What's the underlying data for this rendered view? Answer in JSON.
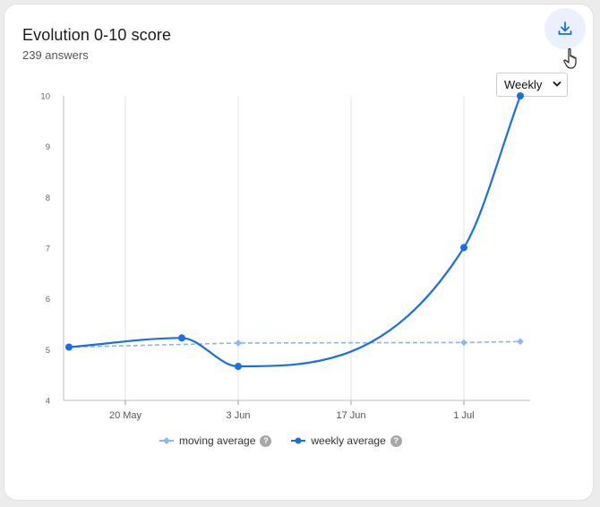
{
  "header": {
    "title": "Evolution 0-10 score",
    "subtitle": "239 answers"
  },
  "toolbar": {
    "download_icon": "download-icon",
    "period_select_value": "Weekly"
  },
  "legend": {
    "moving_label": "moving average",
    "weekly_label": "weekly average",
    "help_glyph": "?"
  },
  "colors": {
    "weekly": "#1a6ee8",
    "moving": "#8ab8f2",
    "accent_bg": "#eaf1fc"
  },
  "chart_data": {
    "type": "line",
    "title": "Evolution 0-10 score",
    "xlabel": "",
    "ylabel": "",
    "ylim": [
      4,
      10
    ],
    "yticks": [
      4,
      5,
      6,
      7,
      8,
      9,
      10
    ],
    "xtick_labels": [
      "20 May",
      "3 Jun",
      "17 Jun",
      "1 Jul"
    ],
    "x": [
      "2024-05-13",
      "2024-05-27",
      "2024-06-03",
      "2024-06-10",
      "2024-06-17",
      "2024-06-24",
      "2024-07-01",
      "2024-07-08"
    ],
    "series": [
      {
        "name": "moving average",
        "values": [
          5.05,
          null,
          5.13,
          null,
          null,
          null,
          5.14,
          5.16
        ]
      },
      {
        "name": "weekly average",
        "values": [
          5.05,
          5.23,
          4.67,
          null,
          null,
          null,
          7.01,
          10.0
        ]
      }
    ],
    "grid": "vertical",
    "legend_position": "bottom"
  }
}
